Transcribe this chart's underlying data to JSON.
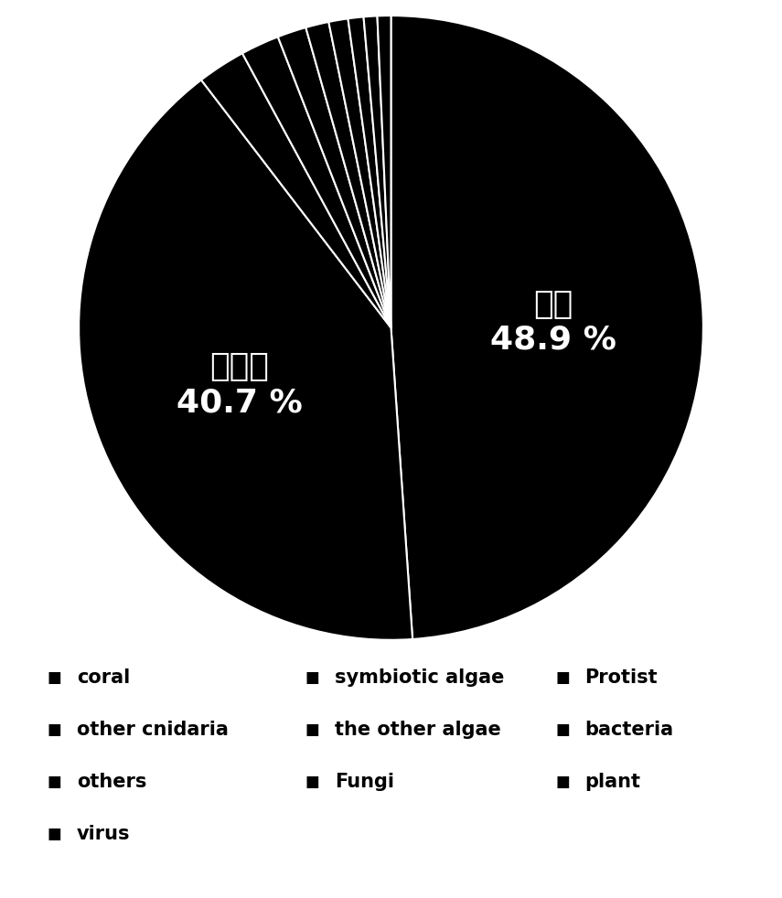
{
  "labels": [
    "coral",
    "symbiotic algae",
    "other cnidaria",
    "others",
    "virus",
    "the other algae",
    "Fungi",
    "Protist",
    "bacteria",
    "plant"
  ],
  "chinese_labels": [
    "珊瑚",
    "共生藻",
    "",
    "",
    "",
    "",
    "",
    "",
    "",
    ""
  ],
  "percentages": [
    48.9,
    40.7,
    2.5,
    2.0,
    1.5,
    1.2,
    1.0,
    0.8,
    0.7,
    0.7
  ],
  "color": "#000000",
  "background_color": "#ffffff",
  "wedge_edge_color": "#ffffff",
  "wedge_edge_width": 1.5,
  "label_color": "#ffffff",
  "legend_color": "#000000",
  "large_label_fontsize": 26,
  "large_pct_fontsize": 26,
  "legend_fontsize": 15,
  "startangle": 90,
  "col1": [
    "coral",
    "other cnidaria",
    "others",
    "virus"
  ],
  "col2": [
    "symbiotic algae",
    "the other algae",
    "Fungi"
  ],
  "col3": [
    "Protist",
    "bacteria",
    "plant"
  ]
}
